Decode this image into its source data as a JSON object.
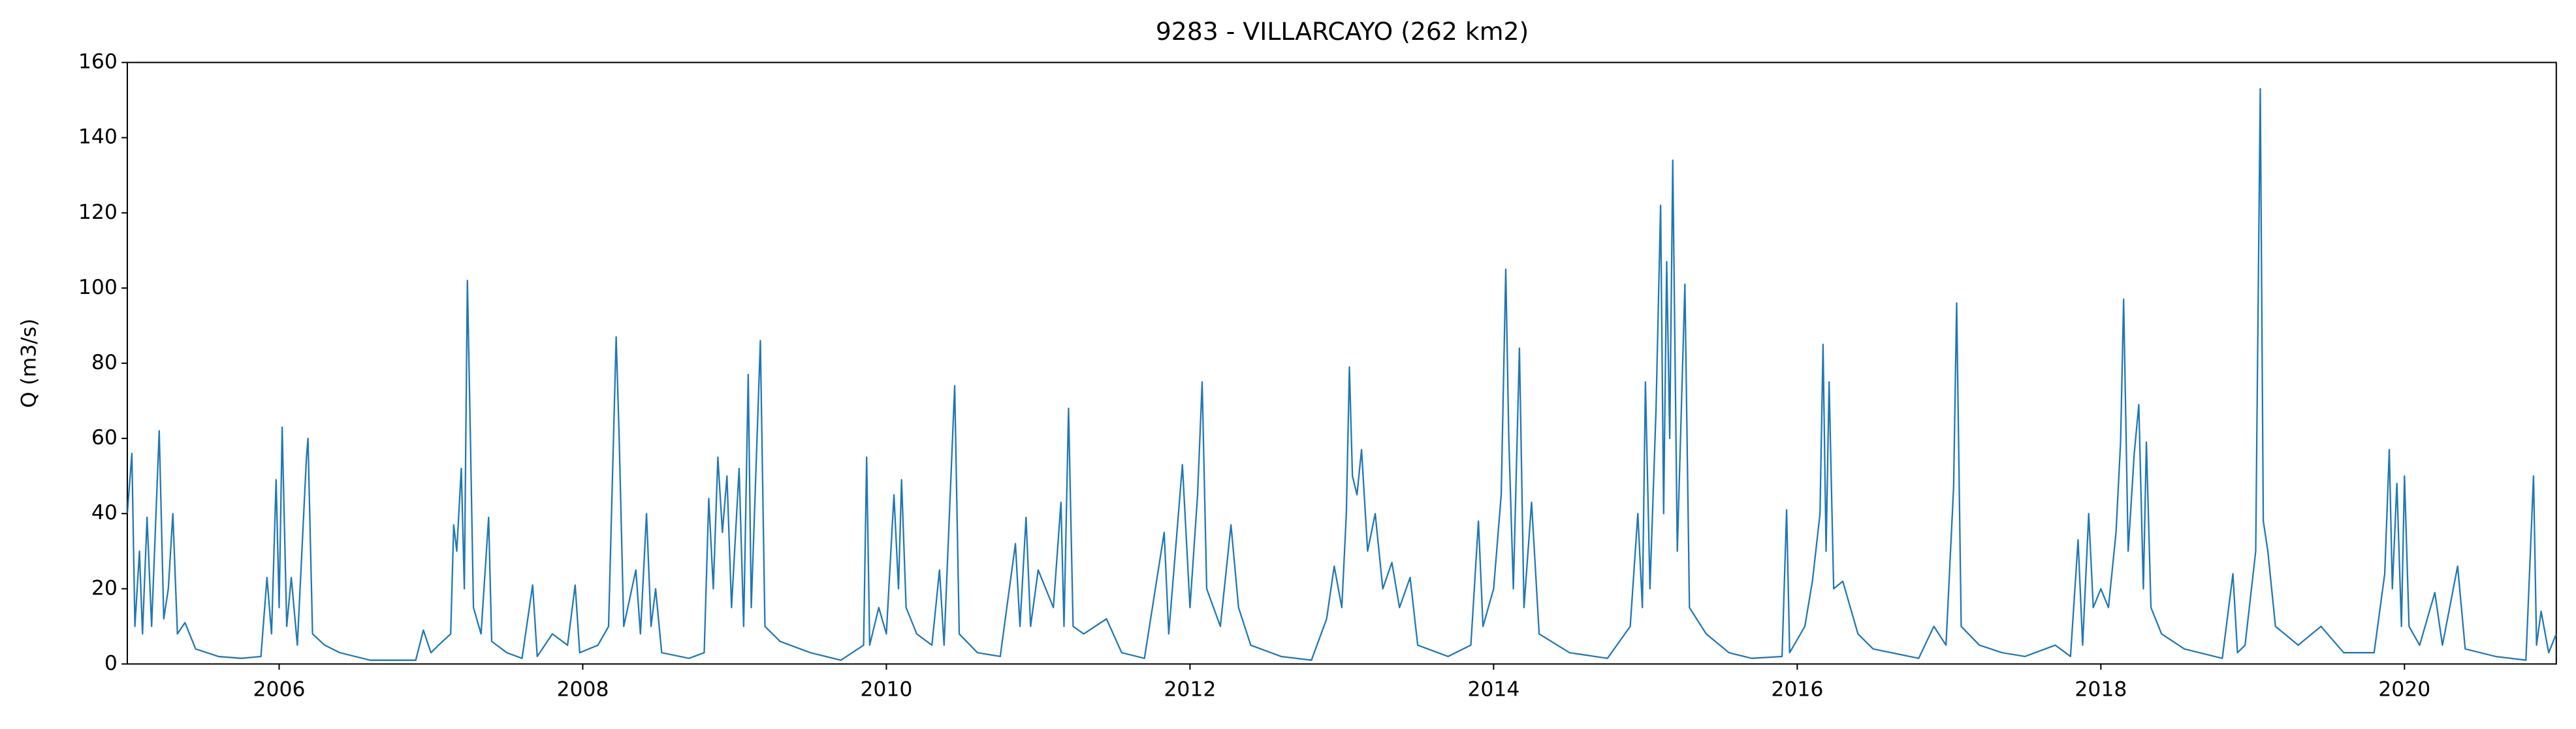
{
  "chart_data": {
    "type": "line",
    "title": "9283 - VILLARCAYO (262 km2)",
    "ylabel": "Q (m3/s)",
    "xlim": [
      2005,
      2021
    ],
    "xticks": [
      2006,
      2008,
      2010,
      2012,
      2014,
      2016,
      2018,
      2020
    ],
    "ylim": [
      0,
      160
    ],
    "yticks": [
      0,
      20,
      40,
      60,
      80,
      100,
      120,
      140,
      160
    ],
    "grid": false,
    "series": [
      {
        "name": "Q",
        "color": "#1f77b4",
        "x": [
          2005.0,
          2005.03,
          2005.05,
          2005.08,
          2005.1,
          2005.13,
          2005.16,
          2005.21,
          2005.24,
          2005.27,
          2005.3,
          2005.33,
          2005.38,
          2005.45,
          2005.6,
          2005.75,
          2005.88,
          2005.92,
          2005.95,
          2005.98,
          2006.0,
          2006.02,
          2006.05,
          2006.08,
          2006.12,
          2006.18,
          2006.19,
          2006.22,
          2006.3,
          2006.4,
          2006.6,
          2006.9,
          2006.95,
          2007.0,
          2007.05,
          2007.13,
          2007.15,
          2007.17,
          2007.2,
          2007.22,
          2007.24,
          2007.26,
          2007.28,
          2007.33,
          2007.38,
          2007.4,
          2007.5,
          2007.6,
          2007.67,
          2007.7,
          2007.8,
          2007.9,
          2007.95,
          2007.98,
          2008.1,
          2008.17,
          2008.22,
          2008.24,
          2008.27,
          2008.35,
          2008.38,
          2008.42,
          2008.45,
          2008.48,
          2008.52,
          2008.7,
          2008.8,
          2008.83,
          2008.86,
          2008.89,
          2008.92,
          2008.95,
          2008.98,
          2009.03,
          2009.06,
          2009.09,
          2009.11,
          2009.17,
          2009.2,
          2009.3,
          2009.5,
          2009.7,
          2009.85,
          2009.87,
          2009.89,
          2009.95,
          2010.0,
          2010.05,
          2010.08,
          2010.1,
          2010.13,
          2010.2,
          2010.3,
          2010.35,
          2010.38,
          2010.45,
          2010.48,
          2010.6,
          2010.75,
          2010.85,
          2010.88,
          2010.92,
          2010.95,
          2011.0,
          2011.05,
          2011.1,
          2011.15,
          2011.17,
          2011.2,
          2011.23,
          2011.3,
          2011.45,
          2011.55,
          2011.7,
          2011.83,
          2011.86,
          2011.95,
          2012.0,
          2012.05,
          2012.08,
          2012.11,
          2012.2,
          2012.27,
          2012.32,
          2012.4,
          2012.6,
          2012.8,
          2012.9,
          2012.95,
          2013.0,
          2013.03,
          2013.05,
          2013.07,
          2013.1,
          2013.13,
          2013.17,
          2013.22,
          2013.27,
          2013.33,
          2013.38,
          2013.45,
          2013.5,
          2013.7,
          2013.85,
          2013.9,
          2013.93,
          2014.0,
          2014.05,
          2014.08,
          2014.1,
          2014.13,
          2014.17,
          2014.2,
          2014.25,
          2014.3,
          2014.5,
          2014.75,
          2014.9,
          2014.95,
          2014.98,
          2015.0,
          2015.03,
          2015.07,
          2015.1,
          2015.12,
          2015.14,
          2015.16,
          2015.18,
          2015.21,
          2015.26,
          2015.29,
          2015.4,
          2015.55,
          2015.7,
          2015.9,
          2015.93,
          2015.95,
          2016.05,
          2016.1,
          2016.15,
          2016.17,
          2016.19,
          2016.21,
          2016.24,
          2016.3,
          2016.4,
          2016.5,
          2016.8,
          2016.9,
          2016.98,
          2017.03,
          2017.05,
          2017.08,
          2017.2,
          2017.35,
          2017.5,
          2017.7,
          2017.8,
          2017.85,
          2017.88,
          2017.92,
          2017.95,
          2018.0,
          2018.05,
          2018.1,
          2018.13,
          2018.15,
          2018.18,
          2018.22,
          2018.25,
          2018.28,
          2018.3,
          2018.33,
          2018.4,
          2018.55,
          2018.8,
          2018.87,
          2018.9,
          2018.95,
          2019.02,
          2019.05,
          2019.07,
          2019.1,
          2019.15,
          2019.3,
          2019.45,
          2019.6,
          2019.8,
          2019.87,
          2019.9,
          2019.92,
          2019.95,
          2019.98,
          2020.0,
          2020.03,
          2020.1,
          2020.2,
          2020.25,
          2020.35,
          2020.4,
          2020.6,
          2020.8,
          2020.85,
          2020.87,
          2020.9,
          2020.95,
          2021.0
        ],
        "values": [
          40,
          56,
          10,
          30,
          8,
          39,
          10,
          62,
          12,
          20,
          40,
          8,
          11,
          4,
          2,
          1.5,
          2,
          23,
          8,
          49,
          15,
          63,
          10,
          23,
          5,
          55,
          60,
          8,
          5,
          3,
          1,
          1,
          9,
          3,
          5,
          8,
          37,
          30,
          52,
          20,
          102,
          60,
          15,
          8,
          39,
          6,
          3,
          1.5,
          21,
          2,
          8,
          5,
          21,
          3,
          5,
          10,
          87,
          60,
          10,
          25,
          8,
          40,
          10,
          20,
          3,
          1.5,
          3,
          44,
          20,
          55,
          35,
          50,
          15,
          52,
          10,
          77,
          15,
          86,
          10,
          6,
          3,
          1,
          5,
          55,
          5,
          15,
          8,
          45,
          20,
          49,
          15,
          8,
          5,
          25,
          5,
          74,
          8,
          3,
          2,
          32,
          10,
          39,
          10,
          25,
          20,
          15,
          43,
          10,
          68,
          10,
          8,
          12,
          3,
          1.5,
          35,
          8,
          53,
          15,
          45,
          75,
          20,
          10,
          37,
          15,
          5,
          2,
          1,
          12,
          26,
          15,
          40,
          79,
          50,
          45,
          57,
          30,
          40,
          20,
          27,
          15,
          23,
          5,
          2,
          5,
          38,
          10,
          20,
          45,
          105,
          60,
          20,
          84,
          15,
          43,
          8,
          3,
          1.5,
          10,
          40,
          15,
          75,
          20,
          68,
          122,
          40,
          107,
          60,
          134,
          30,
          101,
          15,
          8,
          3,
          1.5,
          2,
          41,
          3,
          10,
          22,
          40,
          85,
          30,
          75,
          20,
          22,
          8,
          4,
          1.5,
          10,
          5,
          47,
          96,
          10,
          5,
          3,
          2,
          5,
          2,
          33,
          5,
          40,
          15,
          20,
          15,
          35,
          59,
          97,
          30,
          56,
          69,
          20,
          59,
          15,
          8,
          4,
          1.5,
          24,
          3,
          5,
          30,
          153,
          38,
          30,
          10,
          5,
          10,
          3,
          3,
          24,
          57,
          20,
          48,
          10,
          50,
          10,
          5,
          19,
          5,
          26,
          4,
          2,
          1,
          50,
          5,
          14,
          3,
          8
        ]
      }
    ]
  }
}
